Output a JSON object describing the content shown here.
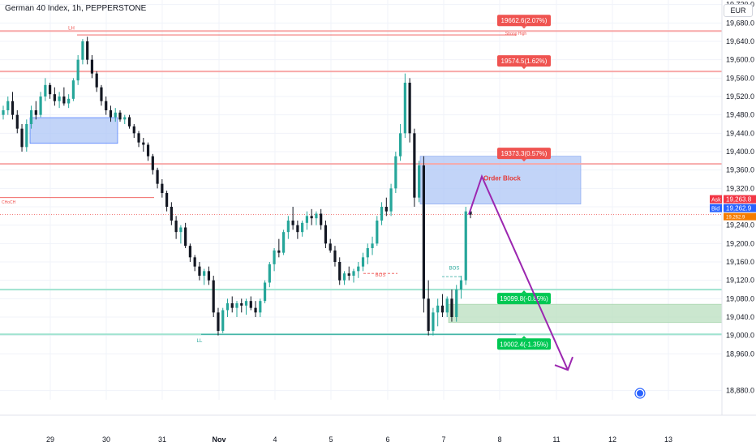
{
  "header": {
    "title": "German 40 Index, 1h, PEPPERSTONE",
    "currency": "EUR"
  },
  "colors": {
    "up": "#26a69a",
    "down": "#131722",
    "red_line": "#f7a8a8",
    "green_line": "#9fe3cf",
    "order_block": "#aec6f5",
    "demand": "#b9dfbf",
    "arrow": "#9c27b0",
    "red_label": "#ef5350",
    "green_label": "#00c853",
    "ask": "#f23645",
    "bid": "#2962ff"
  },
  "chart_data": {
    "type": "candlestick",
    "y_axis": {
      "ylim": [
        18860,
        19730
      ],
      "ticks": [
        18880,
        18960,
        19000,
        19040,
        19080,
        19120,
        19160,
        19200,
        19240,
        19280,
        19320,
        19360,
        19400,
        19440,
        19480,
        19520,
        19560,
        19600,
        19640,
        19680,
        19720
      ],
      "tick_labels": [
        "18,880.0",
        "18,960.0",
        "19,000.0",
        "19,040.0",
        "19,080.0",
        "19,120.0",
        "19,160.0",
        "19,200.0",
        "19,240.0",
        "19,280.0",
        "19,320.0",
        "19,360.0",
        "19,400.0",
        "19,440.0",
        "19,480.0",
        "19,520.0",
        "19,560.0",
        "19,600.0",
        "19,640.0",
        "19,680.0",
        "19,720.0"
      ]
    },
    "x_axis": {
      "labels": [
        "29",
        "30",
        "31",
        "Nov",
        "4",
        "5",
        "6",
        "7",
        "8",
        "11",
        "12",
        "13"
      ]
    },
    "horizontal_levels": [
      {
        "price": 19662.6,
        "kind": "red",
        "label": "19662.6(2.07%)"
      },
      {
        "price": 19574.5,
        "kind": "red",
        "label": "19574.5(1.62%)"
      },
      {
        "price": 19373.3,
        "kind": "red",
        "label": "19373.3(0.57%)"
      },
      {
        "price": 19099.8,
        "kind": "green",
        "label": "19099.8(-0.85%)"
      },
      {
        "price": 19002.4,
        "kind": "green",
        "label": "19002.4(-1.35%)"
      }
    ],
    "zones": [
      {
        "name": "order-block",
        "price_top": 19390,
        "price_bottom": 19286,
        "label": "Order Block"
      },
      {
        "name": "demand-zone",
        "price_top": 19068,
        "price_bottom": 19028
      },
      {
        "name": "supply-zone-left",
        "price_top": 19474,
        "price_bottom": 19418
      }
    ],
    "annotations": [
      {
        "text": "LH",
        "price": 19666
      },
      {
        "text": "Strong High",
        "price": 19654
      },
      {
        "text": "CHoCH",
        "price": 19287
      },
      {
        "text": "BOS",
        "price": 19128
      },
      {
        "text": "BOS",
        "price": 19143
      },
      {
        "text": "LL",
        "price": 18985
      }
    ],
    "price_labels": {
      "ask_label": "Ask",
      "ask": "19,263.8",
      "bid_label": "Bid",
      "bid": "19,262.9",
      "last": "19,262.9",
      "current_price": 19263
    },
    "projection": {
      "from_price": 19263,
      "peak_price": 19346,
      "target_price": 18925
    },
    "candles": [
      [
        19480,
        19500,
        19470,
        19490
      ],
      [
        19490,
        19520,
        19480,
        19510
      ],
      [
        19510,
        19530,
        19470,
        19480
      ],
      [
        19480,
        19490,
        19440,
        19450
      ],
      [
        19450,
        19460,
        19400,
        19410
      ],
      [
        19410,
        19470,
        19400,
        19460
      ],
      [
        19460,
        19500,
        19450,
        19490
      ],
      [
        19490,
        19510,
        19470,
        19480
      ],
      [
        19480,
        19530,
        19475,
        19520
      ],
      [
        19520,
        19560,
        19510,
        19545
      ],
      [
        19545,
        19550,
        19515,
        19525
      ],
      [
        19525,
        19540,
        19500,
        19510
      ],
      [
        19510,
        19530,
        19495,
        19520
      ],
      [
        19520,
        19540,
        19500,
        19505
      ],
      [
        19505,
        19525,
        19495,
        19515
      ],
      [
        19515,
        19560,
        19510,
        19555
      ],
      [
        19555,
        19610,
        19545,
        19600
      ],
      [
        19600,
        19645,
        19590,
        19640
      ],
      [
        19640,
        19650,
        19590,
        19600
      ],
      [
        19600,
        19610,
        19560,
        19570
      ],
      [
        19570,
        19575,
        19530,
        19540
      ],
      [
        19540,
        19545,
        19500,
        19510
      ],
      [
        19510,
        19520,
        19480,
        19490
      ],
      [
        19490,
        19500,
        19465,
        19475
      ],
      [
        19475,
        19495,
        19465,
        19485
      ],
      [
        19485,
        19490,
        19465,
        19470
      ],
      [
        19470,
        19480,
        19460,
        19475
      ],
      [
        19475,
        19480,
        19450,
        19455
      ],
      [
        19455,
        19460,
        19430,
        19440
      ],
      [
        19440,
        19445,
        19410,
        19420
      ],
      [
        19420,
        19430,
        19400,
        19415
      ],
      [
        19415,
        19420,
        19380,
        19390
      ],
      [
        19390,
        19395,
        19350,
        19360
      ],
      [
        19360,
        19365,
        19320,
        19330
      ],
      [
        19330,
        19340,
        19300,
        19310
      ],
      [
        19310,
        19315,
        19270,
        19280
      ],
      [
        19280,
        19290,
        19240,
        19250
      ],
      [
        19250,
        19260,
        19210,
        19225
      ],
      [
        19225,
        19240,
        19200,
        19235
      ],
      [
        19235,
        19245,
        19190,
        19195
      ],
      [
        19195,
        19200,
        19160,
        19170
      ],
      [
        19170,
        19175,
        19140,
        19150
      ],
      [
        19150,
        19160,
        19120,
        19130
      ],
      [
        19130,
        19145,
        19110,
        19140
      ],
      [
        19140,
        19150,
        19110,
        19120
      ],
      [
        19120,
        19130,
        19040,
        19050
      ],
      [
        19050,
        19060,
        19000,
        19010
      ],
      [
        19010,
        19060,
        19005,
        19055
      ],
      [
        19055,
        19080,
        19040,
        19070
      ],
      [
        19070,
        19085,
        19050,
        19060
      ],
      [
        19060,
        19075,
        19040,
        19070
      ],
      [
        19070,
        19080,
        19050,
        19065
      ],
      [
        19065,
        19080,
        19045,
        19075
      ],
      [
        19075,
        19085,
        19055,
        19060
      ],
      [
        19060,
        19075,
        19040,
        19050
      ],
      [
        19050,
        19080,
        19040,
        19075
      ],
      [
        19075,
        19120,
        19070,
        19115
      ],
      [
        19115,
        19160,
        19105,
        19155
      ],
      [
        19155,
        19190,
        19140,
        19185
      ],
      [
        19185,
        19210,
        19170,
        19180
      ],
      [
        19180,
        19230,
        19175,
        19225
      ],
      [
        19225,
        19260,
        19210,
        19250
      ],
      [
        19250,
        19280,
        19230,
        19240
      ],
      [
        19240,
        19250,
        19210,
        19225
      ],
      [
        19225,
        19250,
        19215,
        19245
      ],
      [
        19245,
        19270,
        19230,
        19260
      ],
      [
        19260,
        19275,
        19240,
        19255
      ],
      [
        19255,
        19270,
        19240,
        19265
      ],
      [
        19265,
        19275,
        19230,
        19240
      ],
      [
        19240,
        19250,
        19190,
        19200
      ],
      [
        19200,
        19210,
        19180,
        19185
      ],
      [
        19185,
        19195,
        19150,
        19160
      ],
      [
        19160,
        19170,
        19110,
        19120
      ],
      [
        19120,
        19140,
        19110,
        19135
      ],
      [
        19135,
        19150,
        19120,
        19130
      ],
      [
        19130,
        19145,
        19115,
        19140
      ],
      [
        19140,
        19160,
        19125,
        19150
      ],
      [
        19150,
        19180,
        19140,
        19170
      ],
      [
        19170,
        19200,
        19155,
        19190
      ],
      [
        19190,
        19215,
        19175,
        19200
      ],
      [
        19200,
        19260,
        19195,
        19250
      ],
      [
        19250,
        19290,
        19240,
        19280
      ],
      [
        19280,
        19300,
        19260,
        19270
      ],
      [
        19270,
        19330,
        19260,
        19320
      ],
      [
        19320,
        19400,
        19310,
        19390
      ],
      [
        19390,
        19460,
        19380,
        19440
      ],
      [
        19440,
        19570,
        19430,
        19550
      ],
      [
        19550,
        19560,
        19420,
        19440
      ],
      [
        19440,
        19450,
        19280,
        19300
      ],
      [
        19300,
        19380,
        19290,
        19370
      ],
      [
        19370,
        19390,
        19050,
        19080
      ],
      [
        19080,
        19120,
        19000,
        19010
      ],
      [
        19010,
        19060,
        19000,
        19050
      ],
      [
        19050,
        19080,
        19020,
        19065
      ],
      [
        19065,
        19090,
        19040,
        19050
      ],
      [
        19050,
        19085,
        19040,
        19080
      ],
      [
        19080,
        19100,
        19030,
        19040
      ],
      [
        19040,
        19110,
        19030,
        19100
      ],
      [
        19100,
        19130,
        19080,
        19120
      ],
      [
        19120,
        19280,
        19110,
        19270
      ],
      [
        19270,
        19275,
        19255,
        19263
      ]
    ]
  }
}
